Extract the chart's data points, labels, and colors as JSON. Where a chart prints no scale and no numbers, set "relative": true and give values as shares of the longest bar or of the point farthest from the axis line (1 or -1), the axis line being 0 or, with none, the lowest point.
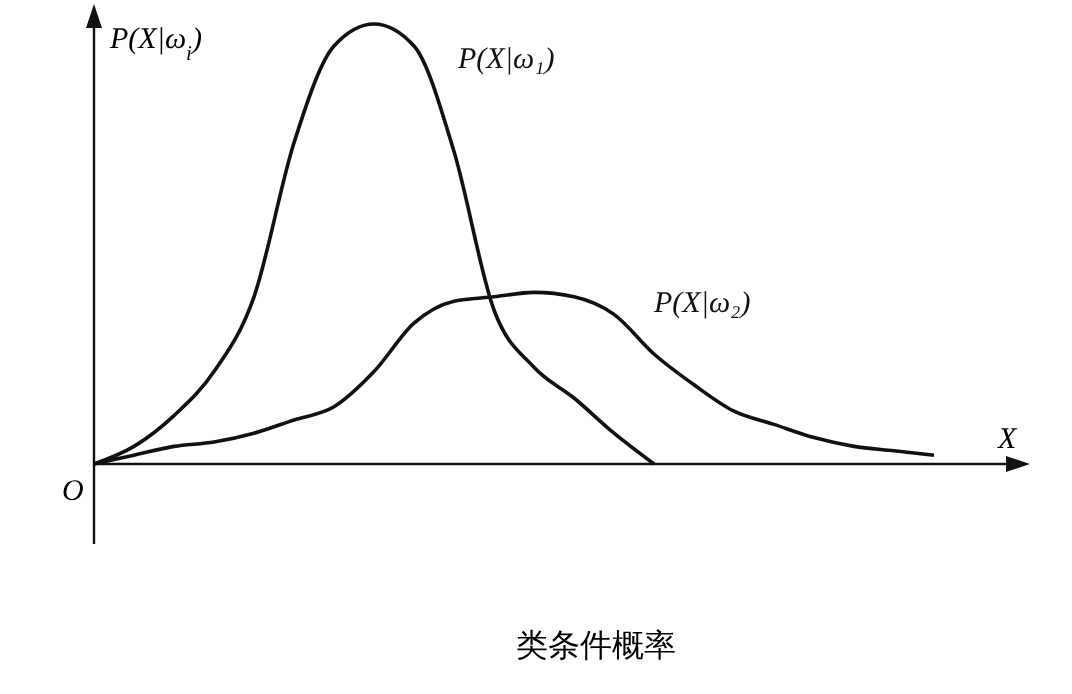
{
  "chart_data": {
    "type": "line",
    "relative": true,
    "title": "类条件概率",
    "xlabel": "X",
    "ylabel": "P(X|ω$_{i}$)",
    "annotations": [
      "O"
    ],
    "categories": [
      null,
      null,
      null,
      null,
      null,
      null,
      null,
      null,
      null,
      null,
      null,
      null,
      null,
      null,
      null,
      null,
      null,
      null,
      null,
      null,
      null,
      null,
      null
    ],
    "series": [
      {
        "name": "P(X|ω₁)",
        "color": "#111111",
        "values": [
          0,
          0.04,
          0.11,
          0.21,
          0.38,
          0.73,
          0.95,
          1,
          0.95,
          0.71,
          0.35,
          0.22,
          0.15,
          0.07,
          0,
          null,
          null,
          null,
          null,
          null,
          null,
          null,
          null
        ]
      },
      {
        "name": "P(X|ω₂)",
        "color": "#111111",
        "values": [
          0,
          0.02,
          0.04,
          0.05,
          0.07,
          0.1,
          0.13,
          0.21,
          0.32,
          0.37,
          0.38,
          0.39,
          0.38,
          0.34,
          0.25,
          0.18,
          0.12,
          0.09,
          0.06,
          0.04,
          0.03,
          0.02,
          null
        ]
      }
    ]
  }
}
